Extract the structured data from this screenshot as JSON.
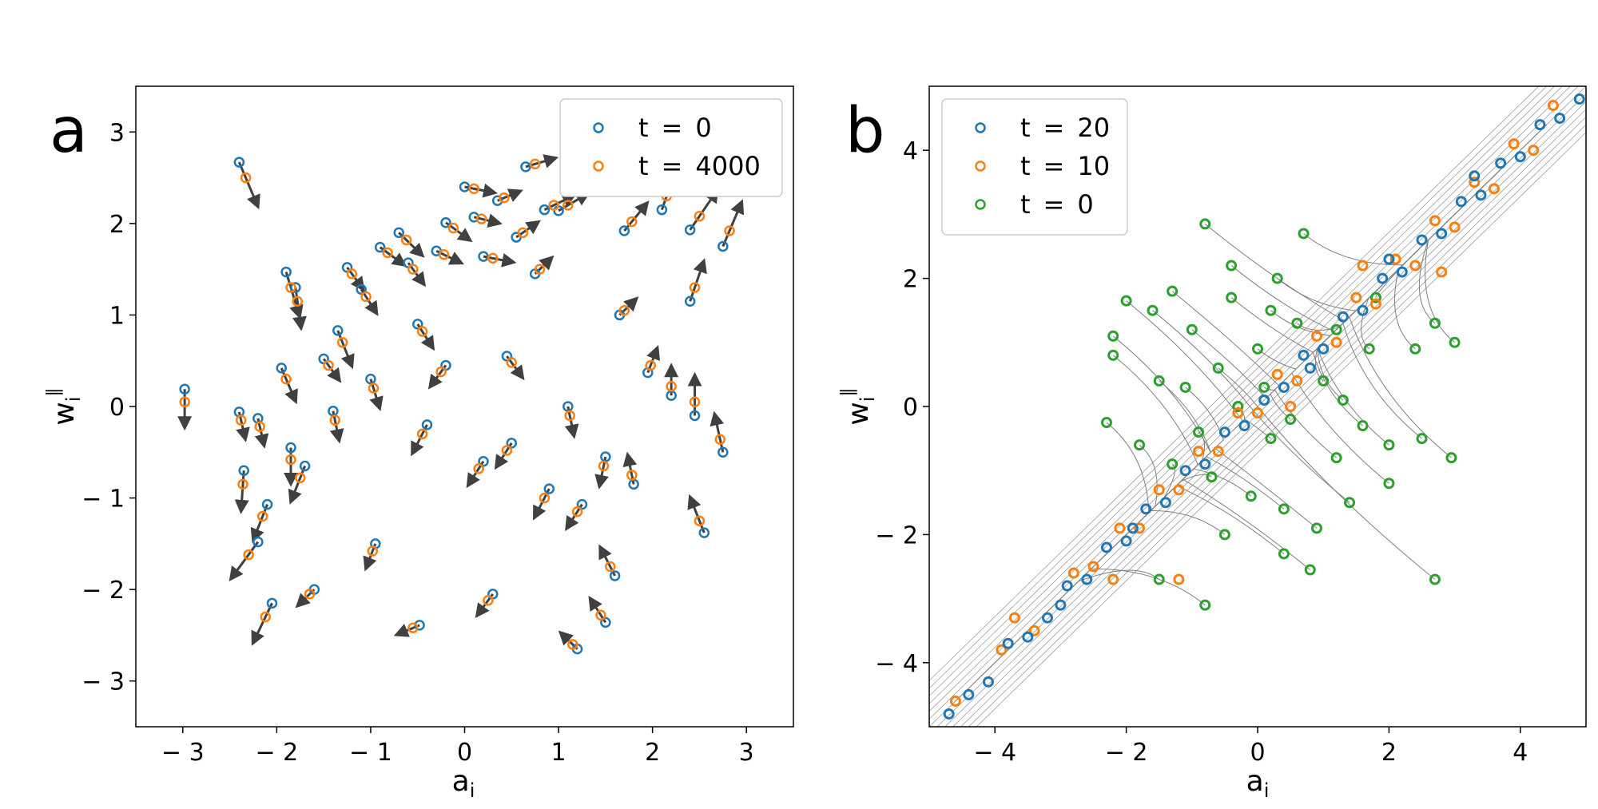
{
  "colors": {
    "blue": "#1f77b4",
    "orange": "#ff7f0e",
    "green": "#2ca02c",
    "arrow": "#404040",
    "trajectory": "#7f7f7f"
  },
  "chart_data": [
    {
      "panel_label": "a",
      "type": "scatter",
      "xlabel": "a",
      "xlabel_sub": "i",
      "ylabel": "w",
      "ylabel_sub": "i",
      "ylabel_sup": "∥",
      "xlim": [
        -3.5,
        3.5
      ],
      "ylim": [
        -3.5,
        3.5
      ],
      "xticks": [
        -3,
        -2,
        -1,
        0,
        1,
        2,
        3
      ],
      "yticks": [
        -3,
        -2,
        -1,
        0,
        1,
        2,
        3
      ],
      "xtick_labels": [
        "− 3",
        "− 2",
        "− 1",
        "0",
        "1",
        "2",
        "3"
      ],
      "ytick_labels": [
        "− 3",
        "− 2",
        "− 1",
        "0",
        "1",
        "2",
        "3"
      ],
      "legend_loc": "upper right",
      "arrows": "each point has an arrow from its t = 0 position toward its t = 4000 position",
      "series": [
        {
          "name": "t = 0",
          "color": "blue",
          "points": [
            [
              -2.4,
              2.67
            ],
            [
              -2.4,
              -0.06
            ],
            [
              -2.2,
              -0.13
            ],
            [
              -2.35,
              -0.7
            ],
            [
              -2.1,
              -1.07
            ],
            [
              -2.2,
              -1.48
            ],
            [
              -2.05,
              -2.15
            ],
            [
              -2.98,
              0.19
            ],
            [
              -1.9,
              1.47
            ],
            [
              -1.8,
              1.3
            ],
            [
              -1.95,
              0.42
            ],
            [
              -1.85,
              -0.45
            ],
            [
              -1.7,
              -0.65
            ],
            [
              -1.6,
              -2.0
            ],
            [
              -1.5,
              0.52
            ],
            [
              -1.4,
              -0.05
            ],
            [
              -1.35,
              0.83
            ],
            [
              -1.25,
              1.52
            ],
            [
              -1.1,
              1.28
            ],
            [
              -1.0,
              0.3
            ],
            [
              -0.95,
              -1.5
            ],
            [
              -0.9,
              1.74
            ],
            [
              -0.7,
              1.9
            ],
            [
              -0.6,
              1.57
            ],
            [
              -0.5,
              0.9
            ],
            [
              -0.4,
              -0.2
            ],
            [
              -0.48,
              -2.39
            ],
            [
              -0.3,
              1.7
            ],
            [
              -0.2,
              2.01
            ],
            [
              0.0,
              2.4
            ],
            [
              0.1,
              2.07
            ],
            [
              0.2,
              1.64
            ],
            [
              0.35,
              2.25
            ],
            [
              0.45,
              0.55
            ],
            [
              0.5,
              -0.4
            ],
            [
              0.55,
              1.85
            ],
            [
              0.65,
              2.62
            ],
            [
              0.75,
              1.45
            ],
            [
              0.85,
              2.15
            ],
            [
              1.0,
              2.14
            ],
            [
              1.1,
              0.0
            ],
            [
              1.25,
              -1.07
            ],
            [
              1.2,
              -2.65
            ],
            [
              1.5,
              -0.55
            ],
            [
              1.5,
              -2.36
            ],
            [
              1.65,
              1.0
            ],
            [
              1.7,
              1.92
            ],
            [
              1.8,
              -0.85
            ],
            [
              1.95,
              0.37
            ],
            [
              2.1,
              2.15
            ],
            [
              2.2,
              0.12
            ],
            [
              2.4,
              1.15
            ],
            [
              2.45,
              -0.1
            ],
            [
              2.55,
              -1.38
            ],
            [
              2.4,
              1.93
            ],
            [
              2.75,
              1.75
            ],
            [
              2.75,
              -0.5
            ],
            [
              0.2,
              -0.6
            ],
            [
              -0.2,
              0.45
            ],
            [
              0.9,
              -0.9
            ],
            [
              1.6,
              -1.85
            ],
            [
              0.3,
              -2.05
            ]
          ]
        },
        {
          "name": "t = 4000",
          "color": "orange",
          "points": [
            [
              -2.33,
              2.5
            ],
            [
              -2.38,
              -0.15
            ],
            [
              -2.18,
              -0.22
            ],
            [
              -2.36,
              -0.85
            ],
            [
              -2.15,
              -1.2
            ],
            [
              -2.3,
              -1.62
            ],
            [
              -2.12,
              -2.3
            ],
            [
              -2.98,
              0.05
            ],
            [
              -1.85,
              1.3
            ],
            [
              -1.78,
              1.15
            ],
            [
              -1.9,
              0.3
            ],
            [
              -1.85,
              -0.58
            ],
            [
              -1.75,
              -0.78
            ],
            [
              -1.65,
              -2.05
            ],
            [
              -1.45,
              0.45
            ],
            [
              -1.38,
              -0.15
            ],
            [
              -1.3,
              0.7
            ],
            [
              -1.2,
              1.45
            ],
            [
              -1.05,
              1.2
            ],
            [
              -0.97,
              0.2
            ],
            [
              -0.98,
              -1.58
            ],
            [
              -0.82,
              1.68
            ],
            [
              -0.62,
              1.82
            ],
            [
              -0.55,
              1.5
            ],
            [
              -0.45,
              0.82
            ],
            [
              -0.45,
              -0.3
            ],
            [
              -0.55,
              -2.42
            ],
            [
              -0.22,
              1.66
            ],
            [
              -0.12,
              1.95
            ],
            [
              0.1,
              2.38
            ],
            [
              0.18,
              2.05
            ],
            [
              0.3,
              1.62
            ],
            [
              0.42,
              2.28
            ],
            [
              0.5,
              0.48
            ],
            [
              0.45,
              -0.48
            ],
            [
              0.62,
              1.9
            ],
            [
              0.75,
              2.65
            ],
            [
              0.8,
              1.5
            ],
            [
              0.95,
              2.2
            ],
            [
              1.1,
              2.2
            ],
            [
              1.12,
              -0.1
            ],
            [
              1.2,
              -1.15
            ],
            [
              1.15,
              -2.6
            ],
            [
              1.48,
              -0.65
            ],
            [
              1.45,
              -2.28
            ],
            [
              1.7,
              1.05
            ],
            [
              1.78,
              2.02
            ],
            [
              1.78,
              -0.75
            ],
            [
              1.98,
              0.45
            ],
            [
              2.15,
              2.3
            ],
            [
              2.2,
              0.22
            ],
            [
              2.45,
              1.3
            ],
            [
              2.45,
              0.05
            ],
            [
              2.5,
              -1.25
            ],
            [
              2.5,
              2.08
            ],
            [
              2.82,
              1.92
            ],
            [
              2.72,
              -0.36
            ],
            [
              0.15,
              -0.68
            ],
            [
              -0.25,
              0.38
            ],
            [
              0.85,
              -1.0
            ],
            [
              1.55,
              -1.75
            ],
            [
              0.25,
              -2.12
            ]
          ]
        }
      ]
    },
    {
      "panel_label": "b",
      "type": "scatter",
      "xlabel": "a",
      "xlabel_sub": "i",
      "ylabel": "w",
      "ylabel_sub": "i",
      "ylabel_sup": "∥",
      "xlim": [
        -5,
        5
      ],
      "ylim": [
        -5,
        5
      ],
      "xticks": [
        -4,
        -2,
        0,
        2,
        4
      ],
      "yticks": [
        -4,
        -2,
        0,
        2,
        4
      ],
      "xtick_labels": [
        "− 4",
        "− 2",
        "0",
        "2",
        "4"
      ],
      "ytick_labels": [
        "− 4",
        "− 2",
        "0",
        "2",
        "4"
      ],
      "legend_loc": "upper left",
      "trajectories": "thin gray curves connect each point's t = 0 position to its later positions along the diagonal",
      "series": [
        {
          "name": "t = 20",
          "color": "blue",
          "points": [
            [
              -4.7,
              -4.8
            ],
            [
              -4.4,
              -4.5
            ],
            [
              -4.1,
              -4.3
            ],
            [
              -3.8,
              -3.7
            ],
            [
              -3.5,
              -3.6
            ],
            [
              -3.2,
              -3.3
            ],
            [
              -2.9,
              -2.8
            ],
            [
              -2.6,
              -2.7
            ],
            [
              -2.3,
              -2.2
            ],
            [
              -2.0,
              -2.1
            ],
            [
              -1.7,
              -1.6
            ],
            [
              -1.4,
              -1.5
            ],
            [
              -1.1,
              -1.0
            ],
            [
              -0.8,
              -0.9
            ],
            [
              -0.5,
              -0.4
            ],
            [
              -0.2,
              -0.3
            ],
            [
              0.1,
              0.1
            ],
            [
              0.4,
              0.3
            ],
            [
              0.7,
              0.8
            ],
            [
              1.0,
              0.9
            ],
            [
              1.3,
              1.4
            ],
            [
              1.6,
              1.5
            ],
            [
              1.9,
              2.0
            ],
            [
              2.2,
              2.1
            ],
            [
              2.5,
              2.6
            ],
            [
              2.8,
              2.7
            ],
            [
              3.1,
              3.2
            ],
            [
              3.4,
              3.3
            ],
            [
              3.7,
              3.8
            ],
            [
              4.0,
              3.9
            ],
            [
              4.3,
              4.4
            ],
            [
              4.6,
              4.5
            ],
            [
              4.9,
              4.8
            ],
            [
              -3.0,
              -3.1
            ],
            [
              -1.9,
              -1.9
            ],
            [
              0.8,
              0.6
            ],
            [
              2.0,
              2.3
            ],
            [
              3.3,
              3.6
            ]
          ]
        },
        {
          "name": "t = 10",
          "color": "orange",
          "points": [
            [
              -4.6,
              -4.6
            ],
            [
              -3.9,
              -3.8
            ],
            [
              -3.4,
              -3.5
            ],
            [
              -2.8,
              -2.6
            ],
            [
              -2.5,
              -2.5
            ],
            [
              -2.1,
              -1.9
            ],
            [
              -1.8,
              -1.9
            ],
            [
              -1.5,
              -1.3
            ],
            [
              -1.2,
              -1.3
            ],
            [
              -0.9,
              -0.7
            ],
            [
              -0.6,
              -0.7
            ],
            [
              -0.3,
              -0.1
            ],
            [
              0.0,
              -0.1
            ],
            [
              0.3,
              0.5
            ],
            [
              0.6,
              0.4
            ],
            [
              0.9,
              1.1
            ],
            [
              1.2,
              1.0
            ],
            [
              1.5,
              1.7
            ],
            [
              1.8,
              1.6
            ],
            [
              2.1,
              2.3
            ],
            [
              2.4,
              2.2
            ],
            [
              2.7,
              2.9
            ],
            [
              3.0,
              2.8
            ],
            [
              3.3,
              3.5
            ],
            [
              3.6,
              3.4
            ],
            [
              3.9,
              4.1
            ],
            [
              4.2,
              4.0
            ],
            [
              4.5,
              4.7
            ],
            [
              -2.2,
              -2.7
            ],
            [
              -3.7,
              -3.3
            ],
            [
              2.8,
              2.1
            ],
            [
              1.6,
              2.2
            ],
            [
              -1.2,
              -2.7
            ],
            [
              0.5,
              0.0
            ]
          ]
        },
        {
          "name": "t = 0",
          "color": "green",
          "points": [
            [
              -0.8,
              2.85
            ],
            [
              0.7,
              2.7
            ],
            [
              -2.0,
              1.65
            ],
            [
              -2.2,
              1.1
            ],
            [
              -1.6,
              1.5
            ],
            [
              -1.0,
              1.2
            ],
            [
              -0.4,
              1.7
            ],
            [
              0.2,
              1.5
            ],
            [
              0.6,
              1.3
            ],
            [
              1.2,
              1.2
            ],
            [
              1.7,
              0.9
            ],
            [
              2.4,
              0.9
            ],
            [
              3.0,
              1.0
            ],
            [
              2.7,
              1.3
            ],
            [
              -1.5,
              0.4
            ],
            [
              -1.1,
              0.3
            ],
            [
              -0.6,
              0.6
            ],
            [
              0.1,
              0.3
            ],
            [
              0.5,
              -0.2
            ],
            [
              1.0,
              0.4
            ],
            [
              1.6,
              -0.3
            ],
            [
              2.0,
              -0.6
            ],
            [
              2.5,
              -0.5
            ],
            [
              2.95,
              -0.8
            ],
            [
              -2.3,
              -0.25
            ],
            [
              -1.8,
              -0.6
            ],
            [
              -1.3,
              -0.9
            ],
            [
              -0.7,
              -1.1
            ],
            [
              -0.1,
              -1.4
            ],
            [
              0.4,
              -1.6
            ],
            [
              0.9,
              -1.9
            ],
            [
              1.4,
              -1.5
            ],
            [
              2.0,
              -1.2
            ],
            [
              -0.5,
              -2.0
            ],
            [
              0.4,
              -2.3
            ],
            [
              0.8,
              -2.55
            ],
            [
              -0.8,
              -3.1
            ],
            [
              2.7,
              -2.7
            ],
            [
              -1.5,
              -2.7
            ],
            [
              -0.3,
              0.0
            ],
            [
              0.2,
              -0.5
            ],
            [
              -0.9,
              -0.4
            ],
            [
              1.3,
              0.1
            ],
            [
              -0.4,
              2.2
            ],
            [
              0.3,
              2.0
            ],
            [
              1.8,
              1.7
            ],
            [
              -2.2,
              0.8
            ],
            [
              1.2,
              -0.8
            ],
            [
              -1.3,
              1.8
            ],
            [
              0.0,
              0.9
            ]
          ]
        }
      ]
    }
  ]
}
